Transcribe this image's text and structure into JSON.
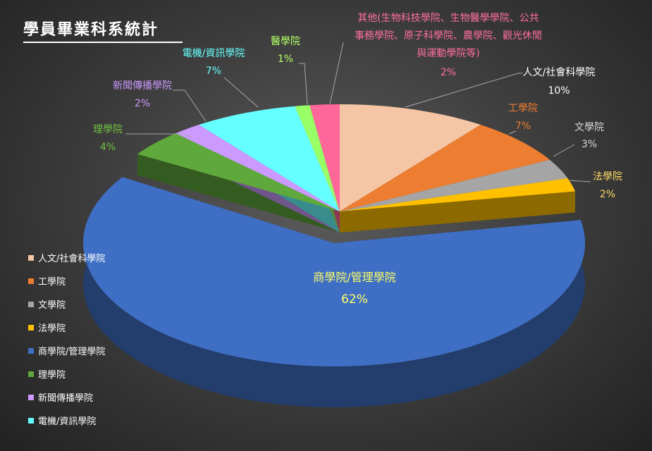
{
  "chart_data": {
    "type": "pie3d",
    "title": "學員畢業科系統計",
    "categories": [
      "人文/社會科學院",
      "工學院",
      "文學院",
      "法學院",
      "商學院/管理學院",
      "理學院",
      "新聞傳播學院",
      "電機/資訊學院",
      "醫學院",
      "其他(生物科技學院、生物醫學學院、公共事務學院、原子科學院、農學院、觀光休閒與運動學院等)"
    ],
    "values": [
      10,
      7,
      3,
      2,
      62,
      4,
      2,
      7,
      1,
      2
    ],
    "value_labels": [
      "10%",
      "7%",
      "3%",
      "2%",
      "62%",
      "4%",
      "2%",
      "7%",
      "1%",
      "2%"
    ],
    "colors": [
      "#f5c6a5",
      "#ed7d31",
      "#a5a5a5",
      "#ffc000",
      "#3f6fc4",
      "#5fa83c",
      "#cc99ff",
      "#66ffff",
      "#99ff66",
      "#ff6699"
    ],
    "label_colors": [
      "#ffffff",
      "#ed7d31",
      "#d9d9d9",
      "#ffd966",
      "#ffff66",
      "#70c040",
      "#cc99ff",
      "#66ffff",
      "#b3ff66",
      "#ff6f9f"
    ],
    "legend": [
      "人文/社會科學院",
      "工學院",
      "文學院",
      "法學院",
      "商學院/管理學院",
      "理學院",
      "新聞傳播學院",
      "電機/資訊學院"
    ]
  }
}
